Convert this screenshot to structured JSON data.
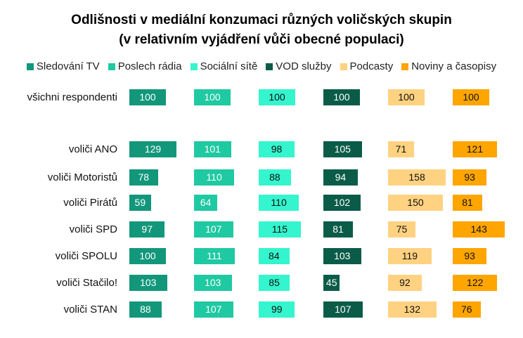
{
  "chart_data": {
    "type": "bar",
    "orientation": "horizontal-small-multiples",
    "title": "Odlišnosti v mediální konzumaci různých voličských skupin",
    "subtitle": "(v relativním vyjádření vůči obecné populaci)",
    "legend_position": "top",
    "grid": false,
    "categories": [
      "všichni respondenti",
      "voliči ANO",
      "voliči Motoristů",
      "voliči Pirátů",
      "voliči SPD",
      "voliči SPOLU",
      "voliči Stačilo!",
      "voliči STAN"
    ],
    "series": [
      {
        "name": "Sledování TV",
        "color": "#12977b",
        "text_color": "#ffffff",
        "values": [
          100,
          129,
          78,
          59,
          97,
          100,
          103,
          88
        ]
      },
      {
        "name": "Poslech rádia",
        "color": "#1fc9a1",
        "text_color": "#ffffff",
        "values": [
          100,
          101,
          110,
          64,
          107,
          111,
          103,
          107
        ]
      },
      {
        "name": "Sociální sítě",
        "color": "#34f5cd",
        "text_color": "#111111",
        "values": [
          100,
          98,
          88,
          110,
          115,
          84,
          85,
          99
        ]
      },
      {
        "name": "VOD služby",
        "color": "#0a5c48",
        "text_color": "#ffffff",
        "values": [
          100,
          105,
          94,
          102,
          81,
          103,
          45,
          107
        ]
      },
      {
        "name": "Podcasty",
        "color": "#ffd281",
        "text_color": "#111111",
        "values": [
          100,
          71,
          158,
          150,
          75,
          119,
          92,
          132
        ]
      },
      {
        "name": "Noviny a časopisy",
        "color": "#ffa500",
        "text_color": "#111111",
        "values": [
          100,
          121,
          93,
          81,
          143,
          93,
          122,
          76
        ]
      }
    ]
  }
}
